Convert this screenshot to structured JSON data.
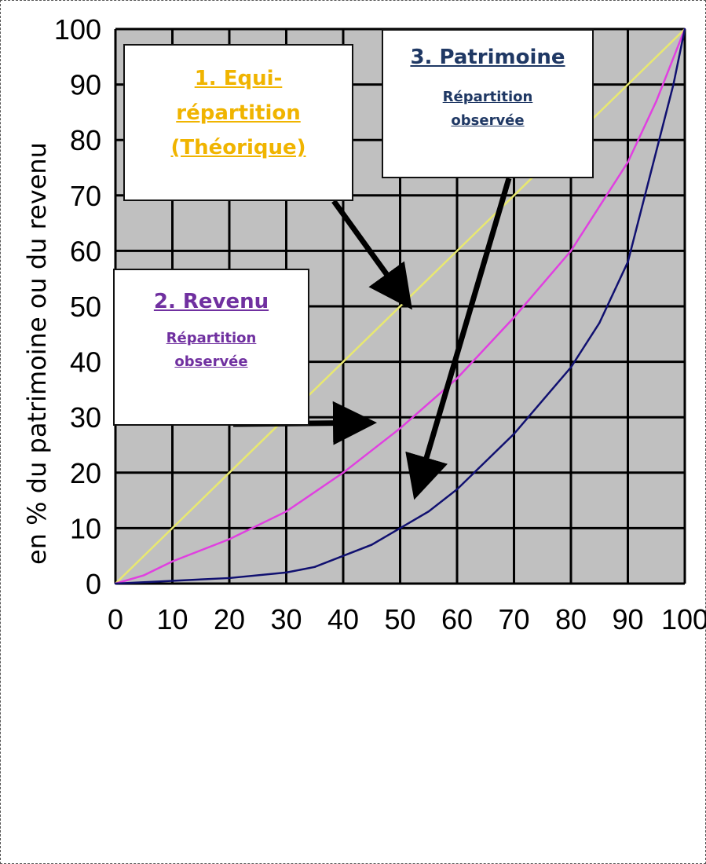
{
  "chart_data": {
    "type": "line",
    "xlabel": "",
    "ylabel": "en % du patrimoine ou du revenu",
    "xlim": [
      0,
      100
    ],
    "ylim": [
      0,
      100
    ],
    "grid": true,
    "x_ticks": [
      "0",
      "10",
      "20",
      "30",
      "40",
      "50",
      "60",
      "70",
      "80",
      "90",
      "100"
    ],
    "y_ticks": [
      "0",
      "10",
      "20",
      "30",
      "40",
      "50",
      "60",
      "70",
      "80",
      "90",
      "100"
    ],
    "series": [
      {
        "key": "equi",
        "color": "#e8e870",
        "x": [
          0,
          10,
          20,
          30,
          40,
          50,
          60,
          70,
          80,
          90,
          100
        ],
        "y": [
          0,
          10,
          20,
          30,
          40,
          50,
          60,
          70,
          80,
          90,
          100
        ]
      },
      {
        "key": "revenu",
        "color": "#e040e0",
        "x": [
          0,
          5,
          10,
          20,
          30,
          40,
          50,
          60,
          70,
          80,
          90,
          95,
          100
        ],
        "y": [
          0,
          1.5,
          4,
          8,
          13,
          20,
          28,
          37,
          48,
          60,
          76,
          87,
          100
        ]
      },
      {
        "key": "patrimoine",
        "color": "#101070",
        "x": [
          0,
          10,
          20,
          30,
          35,
          40,
          45,
          50,
          55,
          60,
          70,
          80,
          85,
          90,
          93,
          95,
          97,
          98,
          99,
          100
        ],
        "y": [
          0,
          0.5,
          1,
          2,
          3,
          5,
          7,
          10,
          13,
          17,
          27,
          39,
          47,
          58,
          70,
          78,
          86,
          90,
          95,
          100
        ]
      }
    ],
    "annotations": [
      {
        "key": "equi",
        "title": "1. Equi-\nrépartition",
        "subtitle": "(Théorique)",
        "color": "#f0b400",
        "arrow_to": [
          51,
          51
        ]
      },
      {
        "key": "revenu",
        "title": "2. Revenu",
        "subtitle": "Répartition\nobservée",
        "color": "#7030a0",
        "arrow_to": [
          44,
          29
        ]
      },
      {
        "key": "patrimoine",
        "title": "3. Patrimoine",
        "subtitle": "Répartition\nobservée",
        "color": "#1f3864",
        "arrow_to": [
          53,
          17
        ]
      }
    ]
  }
}
